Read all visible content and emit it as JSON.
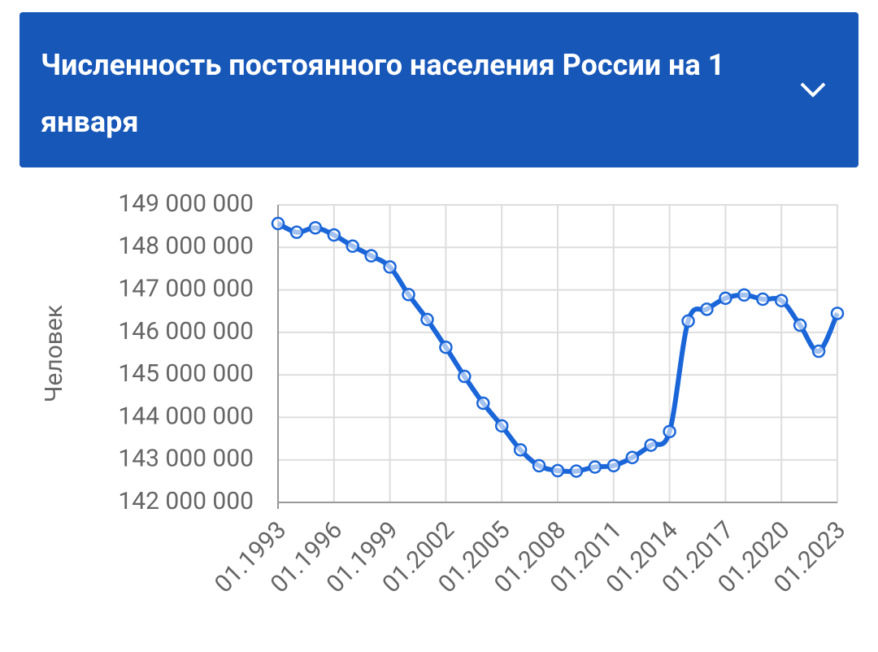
{
  "chart_data": {
    "type": "line",
    "title": "Численность постоянного населения России на 1 января",
    "y_label": "Человек",
    "categories": [
      "01.1993",
      null,
      null,
      "01.1996",
      null,
      null,
      "01.1999",
      null,
      null,
      "01.2002",
      null,
      null,
      "01.2005",
      null,
      null,
      "01.2008",
      null,
      null,
      "01.2011",
      null,
      null,
      "01.2014",
      null,
      null,
      "01.2017",
      null,
      null,
      "01.2020",
      null,
      null,
      "01.2023"
    ],
    "values": [
      148562000,
      148356000,
      148460000,
      148292000,
      148029000,
      147802000,
      147539000,
      146890000,
      146304000,
      145649000,
      144964000,
      144334000,
      143801000,
      143237000,
      142863000,
      142748000,
      142737000,
      142833000,
      142865000,
      143056000,
      143347000,
      143667000,
      146267000,
      146545000,
      146804000,
      146880000,
      146781000,
      146749000,
      146171000,
      145557000,
      146447000
    ],
    "color": "#1a66d9",
    "ylim": [
      142000000,
      149000000
    ],
    "yticks": [
      {
        "value": 142000000,
        "label": "142 000 000"
      },
      {
        "value": 143000000,
        "label": "143 000 000"
      },
      {
        "value": 144000000,
        "label": "144 000 000"
      },
      {
        "value": 145000000,
        "label": "145 000 000"
      },
      {
        "value": 146000000,
        "label": "146 000 000"
      },
      {
        "value": 147000000,
        "label": "147 000 000"
      },
      {
        "value": 148000000,
        "label": "148 000 000"
      },
      {
        "value": 149000000,
        "label": "149 000 000"
      }
    ],
    "grid": true
  }
}
